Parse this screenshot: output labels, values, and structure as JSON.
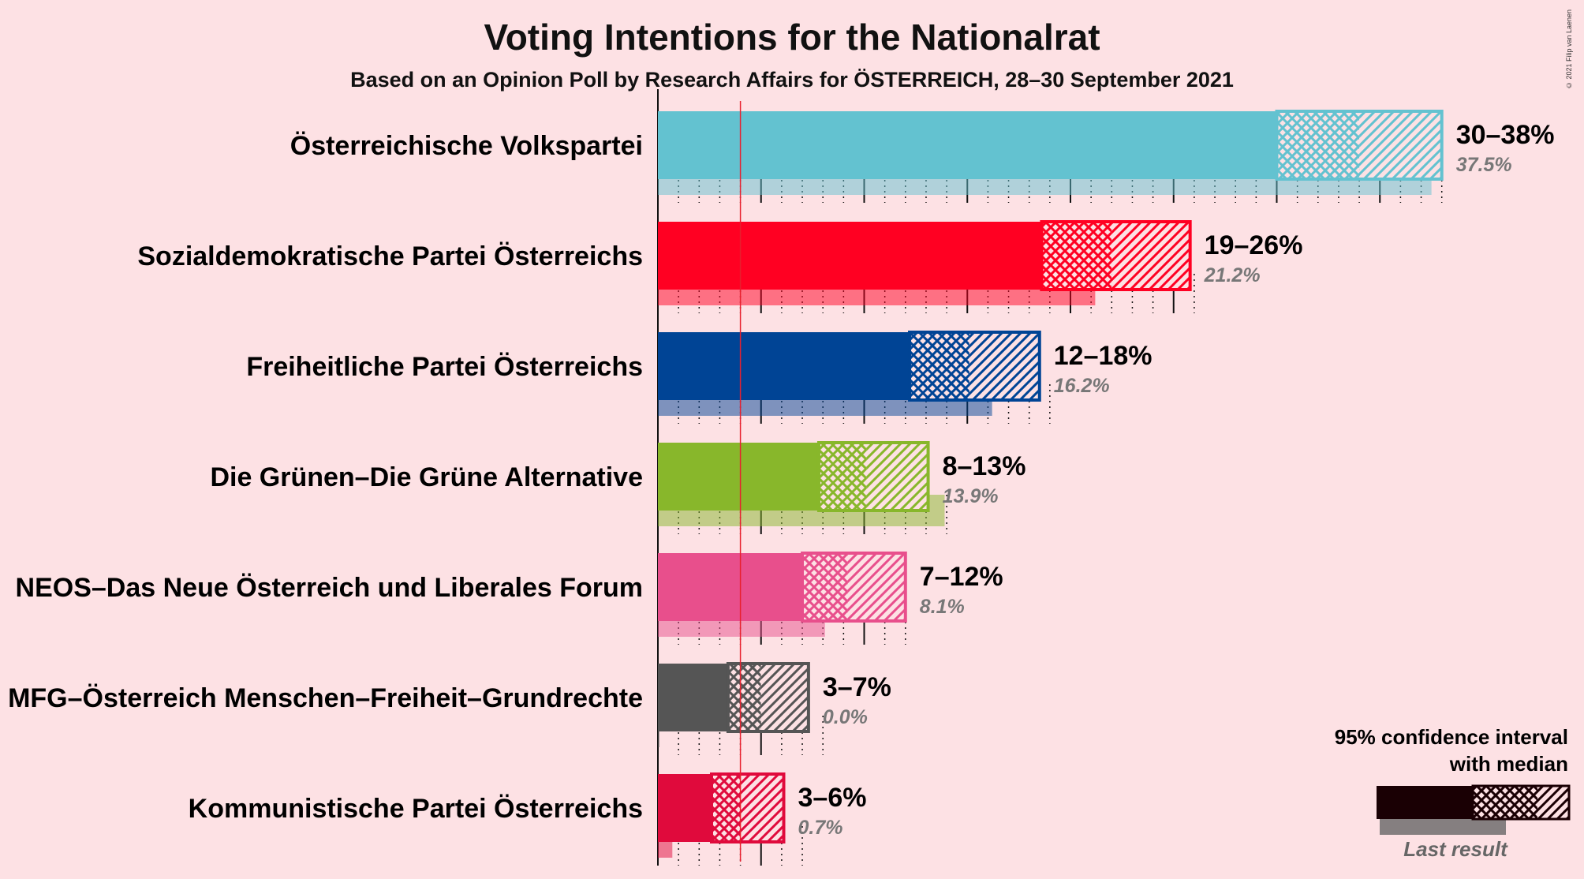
{
  "title": "Voting Intentions for the Nationalrat",
  "subtitle": "Based on an Opinion Poll by Research Affairs for ÖSTERREICH, 28–30 September 2021",
  "copyright": "© 2021 Filip van Laenen",
  "legend": {
    "line1": "95% confidence interval",
    "line2": "with median",
    "last_result": "Last result"
  },
  "chart_data": {
    "type": "bar",
    "orientation": "horizontal",
    "title": "Voting Intentions for the Nationalrat",
    "subtitle": "Based on an Opinion Poll by Research Affairs for ÖSTERREICH, 28–30 September 2021",
    "xlim": [
      0,
      40
    ],
    "threshold": 4,
    "series": [
      {
        "name": "Österreichische Volkspartei",
        "color": "#63c2d0",
        "low": 30,
        "median": 34,
        "high": 38,
        "range_label": "30–38%",
        "last": 37.5,
        "last_label": "37.5%"
      },
      {
        "name": "Sozialdemokratische Partei Österreichs",
        "color": "#ff0022",
        "low": 18.6,
        "median": 22,
        "high": 25.8,
        "range_label": "19–26%",
        "last": 21.2,
        "last_label": "21.2%"
      },
      {
        "name": "Freiheitliche Partei Österreichs",
        "color": "#004495",
        "low": 12.2,
        "median": 15.1,
        "high": 18.5,
        "range_label": "12–18%",
        "last": 16.2,
        "last_label": "16.2%"
      },
      {
        "name": "Die Grünen–Die Grüne Alternative",
        "color": "#88b72b",
        "low": 7.8,
        "median": 10.1,
        "high": 13.1,
        "range_label": "8–13%",
        "last": 13.9,
        "last_label": "13.9%"
      },
      {
        "name": "NEOS–Das Neue Österreich und Liberales Forum",
        "color": "#e84f8c",
        "low": 7,
        "median": 9.2,
        "high": 12,
        "range_label": "7–12%",
        "last": 8.1,
        "last_label": "8.1%"
      },
      {
        "name": "MFG–Österreich Menschen–Freiheit–Grundrechte",
        "color": "#555555",
        "low": 3.4,
        "median": 5,
        "high": 7.3,
        "range_label": "3–7%",
        "last": 0.0,
        "last_label": "0.0%"
      },
      {
        "name": "Kommunistische Partei Österreichs",
        "color": "#e00a3c",
        "low": 2.6,
        "median": 4,
        "high": 6.1,
        "range_label": "3–6%",
        "last": 0.7,
        "last_label": "0.7%"
      }
    ]
  }
}
